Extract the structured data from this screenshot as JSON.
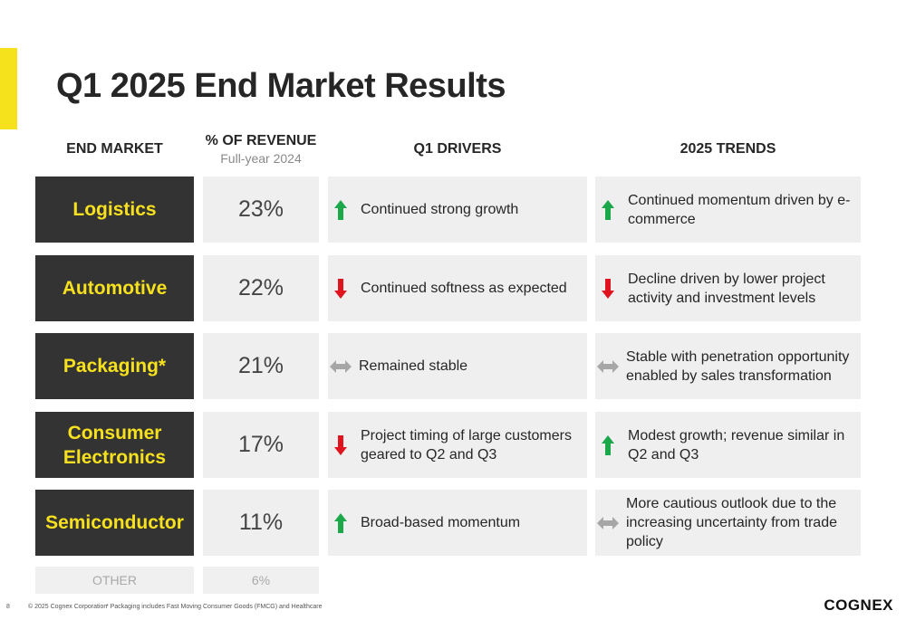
{
  "title": "Q1 2025 End Market Results",
  "headers": {
    "end_market": "END MARKET",
    "pct_revenue": "% OF REVENUE",
    "pct_revenue_sub": "Full-year 2024",
    "q1_drivers": "Q1 DRIVERS",
    "trends": "2025 TRENDS"
  },
  "rows": [
    {
      "market": "Logistics",
      "pct": "23%",
      "driver_dir": "up",
      "driver": "Continued strong growth",
      "trend_dir": "up",
      "trend": "Continued momentum driven by e-commerce"
    },
    {
      "market": "Automotive",
      "pct": "22%",
      "driver_dir": "down",
      "driver": "Continued softness as expected",
      "trend_dir": "down",
      "trend": "Decline driven by lower project activity and investment levels"
    },
    {
      "market": "Packaging*",
      "pct": "21%",
      "driver_dir": "flat",
      "driver": "Remained stable",
      "trend_dir": "flat",
      "trend": "Stable with penetration opportunity enabled by sales transformation"
    },
    {
      "market": "Consumer Electronics",
      "pct": "17%",
      "driver_dir": "down",
      "driver": "Project timing of large customers geared to Q2 and Q3",
      "trend_dir": "up",
      "trend": "Modest growth; revenue similar in Q2 and Q3"
    },
    {
      "market": "Semiconductor",
      "pct": "11%",
      "driver_dir": "up",
      "driver": "Broad-based momentum",
      "trend_dir": "flat",
      "trend": "More cautious outlook due to the increasing uncertainty from trade policy"
    }
  ],
  "other": {
    "market": "OTHER",
    "pct": "6%"
  },
  "footer": {
    "page_number": "8",
    "copyright": "© 2025 Cognex Corporation",
    "footnote": "* Packaging includes Fast Moving Consumer Goods (FMCG) and Healthcare",
    "logo": "COGNEX"
  },
  "colors": {
    "accent": "#f5e11c",
    "market_bg": "#333333",
    "market_text": "#f7e11e",
    "up": "#1aa84b",
    "down": "#e0141e",
    "flat": "#a6a6a6"
  }
}
